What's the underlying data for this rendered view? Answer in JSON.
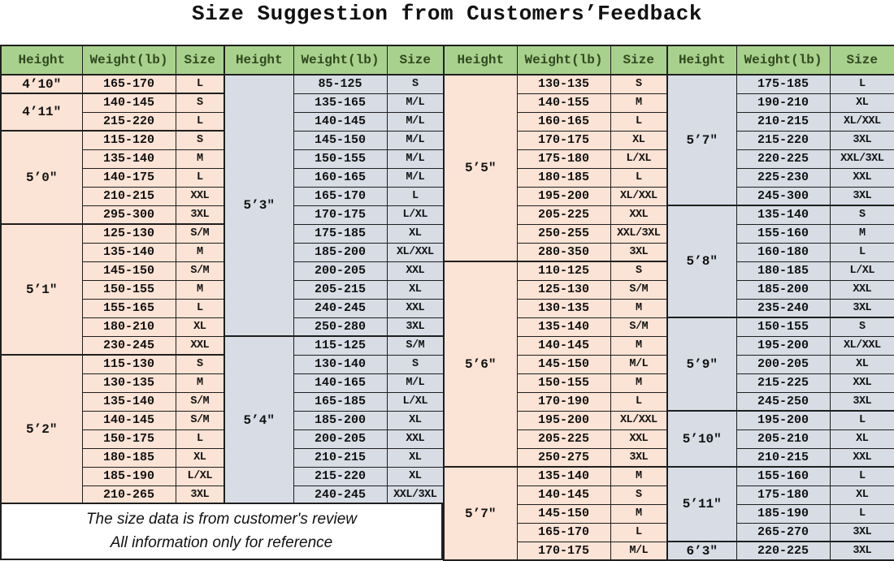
{
  "title": "Size Suggestion from Customers’Feedback",
  "note": {
    "line1": "The size data is from customer's review",
    "line2": "All information only for reference"
  },
  "header_columns": [
    "Height",
    "Weight(lb)",
    "Size"
  ],
  "colors": {
    "header_bg": "#a9d18e",
    "header_text": "#31491f",
    "peach": "#fbe3d5",
    "gray": "#d7dce5",
    "border": "#1f1f1f"
  },
  "chart_data": {
    "type": "table",
    "title": "Size Suggestion from Customers’Feedback",
    "columns_repeated": [
      "Height",
      "Weight(lb)",
      "Size"
    ],
    "groups": [
      {
        "theme": "peach",
        "sections": [
          {
            "height": "4’10″",
            "rows": [
              [
                "165-170",
                "L"
              ]
            ]
          },
          {
            "height": "4’11″",
            "rows": [
              [
                "140-145",
                "S"
              ],
              [
                "215-220",
                "L"
              ]
            ]
          },
          {
            "height": "5’0″",
            "rows": [
              [
                "115-120",
                "S"
              ],
              [
                "135-140",
                "M"
              ],
              [
                "140-175",
                "L"
              ],
              [
                "210-215",
                "XXL"
              ],
              [
                "295-300",
                "3XL"
              ]
            ]
          },
          {
            "height": "5’1″",
            "rows": [
              [
                "125-130",
                "S/M"
              ],
              [
                "135-140",
                "M"
              ],
              [
                "145-150",
                "S/M"
              ],
              [
                "150-155",
                "M"
              ],
              [
                "155-165",
                "L"
              ],
              [
                "180-210",
                "XL"
              ],
              [
                "230-245",
                "XXL"
              ]
            ]
          },
          {
            "height": "5’2″",
            "rows": [
              [
                "115-130",
                "S"
              ],
              [
                "130-135",
                "M"
              ],
              [
                "135-140",
                "S/M"
              ],
              [
                "140-145",
                "S/M"
              ],
              [
                "150-175",
                "L"
              ],
              [
                "180-185",
                "XL"
              ],
              [
                "185-190",
                "L/XL"
              ],
              [
                "210-265",
                "3XL"
              ]
            ]
          }
        ]
      },
      {
        "theme": "gray",
        "sections": [
          {
            "height": "5’3″",
            "rows": [
              [
                "85-125",
                "S"
              ],
              [
                "135-165",
                "M/L"
              ],
              [
                "140-145",
                "M/L"
              ],
              [
                "145-150",
                "M/L"
              ],
              [
                "150-155",
                "M/L"
              ],
              [
                "160-165",
                "M/L"
              ],
              [
                "165-170",
                "L"
              ],
              [
                "170-175",
                "L/XL"
              ],
              [
                "175-185",
                "XL"
              ],
              [
                "185-200",
                "XL/XXL"
              ],
              [
                "200-205",
                "XXL"
              ],
              [
                "205-215",
                "XL"
              ],
              [
                "240-245",
                "XXL"
              ],
              [
                "250-280",
                "3XL"
              ]
            ]
          },
          {
            "height": "5’4″",
            "rows": [
              [
                "115-125",
                "S/M"
              ],
              [
                "130-140",
                "S"
              ],
              [
                "140-165",
                "M/L"
              ],
              [
                "165-185",
                "L/XL"
              ],
              [
                "185-200",
                "XL"
              ],
              [
                "200-205",
                "XXL"
              ],
              [
                "210-215",
                "XL"
              ],
              [
                "215-220",
                "XL"
              ],
              [
                "240-245",
                "XXL/3XL"
              ]
            ]
          }
        ]
      },
      {
        "theme": "peach",
        "sections": [
          {
            "height": "5’5″",
            "rows": [
              [
                "130-135",
                "S"
              ],
              [
                "140-155",
                "M"
              ],
              [
                "160-165",
                "L"
              ],
              [
                "170-175",
                "XL"
              ],
              [
                "175-180",
                "L/XL"
              ],
              [
                "180-185",
                "L"
              ],
              [
                "195-200",
                "XL/XXL"
              ],
              [
                "205-225",
                "XXL"
              ],
              [
                "250-255",
                "XXL/3XL"
              ],
              [
                "280-350",
                "3XL"
              ]
            ]
          },
          {
            "height": "5’6″",
            "rows": [
              [
                "110-125",
                "S"
              ],
              [
                "125-130",
                "S/M"
              ],
              [
                "130-135",
                "M"
              ],
              [
                "135-140",
                "S/M"
              ],
              [
                "140-145",
                "M"
              ],
              [
                "145-150",
                "M/L"
              ],
              [
                "150-155",
                "M"
              ],
              [
                "170-190",
                "L"
              ],
              [
                "195-200",
                "XL/XXL"
              ],
              [
                "205-225",
                "XXL"
              ],
              [
                "250-275",
                "3XL"
              ]
            ]
          },
          {
            "height": "5’7″",
            "rows": [
              [
                "135-140",
                "M"
              ],
              [
                "140-145",
                "S"
              ],
              [
                "145-150",
                "M"
              ],
              [
                "165-170",
                "L"
              ],
              [
                "170-175",
                "M/L"
              ]
            ]
          }
        ]
      },
      {
        "theme": "gray",
        "sections": [
          {
            "height": "5’7″",
            "rows": [
              [
                "175-185",
                "L"
              ],
              [
                "190-210",
                "XL"
              ],
              [
                "210-215",
                "XL/XXL"
              ],
              [
                "215-220",
                "3XL"
              ],
              [
                "220-225",
                "XXL/3XL"
              ],
              [
                "225-230",
                "XXL"
              ],
              [
                "245-300",
                "3XL"
              ]
            ]
          },
          {
            "height": "5’8″",
            "rows": [
              [
                "135-140",
                "S"
              ],
              [
                "155-160",
                "M"
              ],
              [
                "160-180",
                "L"
              ],
              [
                "180-185",
                "L/XL"
              ],
              [
                "185-200",
                "XXL"
              ],
              [
                "235-240",
                "3XL"
              ]
            ]
          },
          {
            "height": "5’9″",
            "rows": [
              [
                "150-155",
                "S"
              ],
              [
                "195-200",
                "XL/XXL"
              ],
              [
                "200-205",
                "XL"
              ],
              [
                "215-225",
                "XXL"
              ],
              [
                "245-250",
                "3XL"
              ]
            ]
          },
          {
            "height": "5’10″",
            "rows": [
              [
                "195-200",
                "L"
              ],
              [
                "205-210",
                "XL"
              ],
              [
                "210-215",
                "XXL"
              ]
            ]
          },
          {
            "height": "5’11″",
            "rows": [
              [
                "155-160",
                "L"
              ],
              [
                "175-180",
                "XL"
              ],
              [
                "185-190",
                "L"
              ],
              [
                "265-270",
                "3XL"
              ]
            ]
          },
          {
            "height": "6’3″",
            "rows": [
              [
                "220-225",
                "3XL"
              ]
            ]
          }
        ]
      }
    ]
  }
}
